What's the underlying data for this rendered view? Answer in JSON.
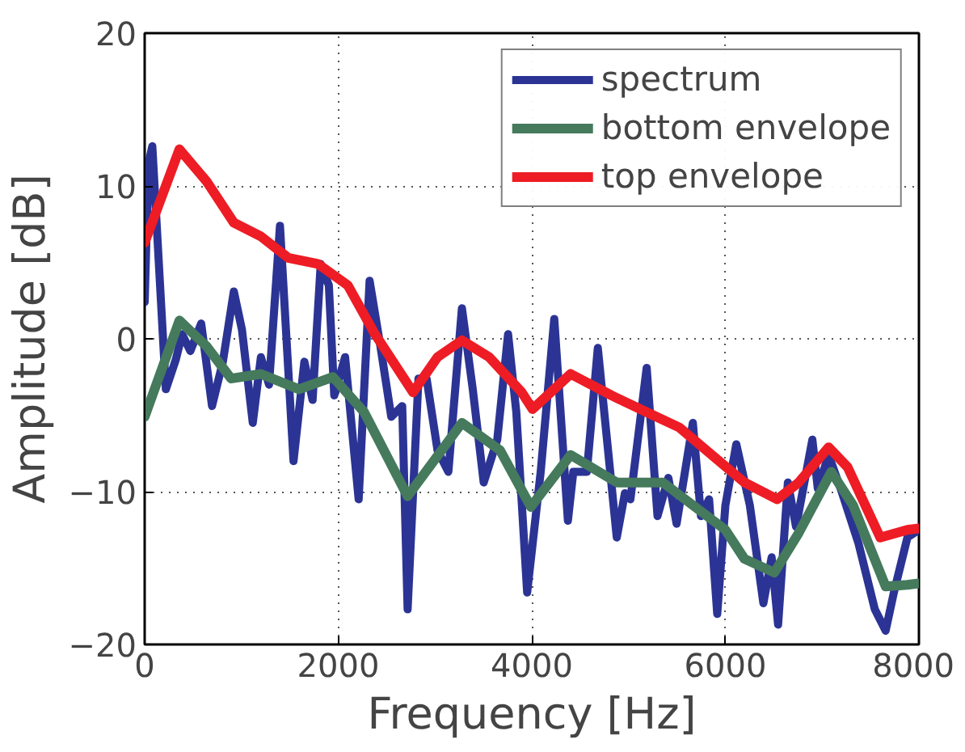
{
  "chart_data": {
    "type": "line",
    "xlabel": "Frequency [Hz]",
    "ylabel": "Amplitude [dB]",
    "xlim": [
      0,
      8000
    ],
    "ylim": [
      -20,
      20
    ],
    "xticks": [
      0,
      2000,
      4000,
      6000,
      8000
    ],
    "yticks": [
      -20,
      -10,
      0,
      10,
      20
    ],
    "grid": true,
    "legend": "top right",
    "line_style": "solid",
    "marker": "none",
    "series": [
      {
        "name": "spectrum",
        "color": "#2b3494",
        "x": [
          0,
          40,
          79,
          219,
          320,
          387,
          472,
          584,
          696,
          808,
          921,
          1005,
          1117,
          1201,
          1285,
          1398,
          1538,
          1650,
          1735,
          1819,
          1903,
          1959,
          2071,
          2211,
          2324,
          2436,
          2548,
          2661,
          2717,
          2829,
          2913,
          3026,
          3138,
          3278,
          3390,
          3503,
          3643,
          3755,
          3840,
          3952,
          4092,
          4232,
          4373,
          4429,
          4569,
          4682,
          4878,
          4962,
          5019,
          5187,
          5299,
          5411,
          5496,
          5664,
          5748,
          5832,
          5916,
          6000,
          6113,
          6253,
          6393,
          6478,
          6545,
          6646,
          6730,
          6899,
          6955,
          7067,
          7207,
          7376,
          7544,
          7656,
          7741,
          7881,
          8000
        ],
        "values": [
          2.4,
          11.5,
          12.6,
          -3.3,
          -1.4,
          0.3,
          -0.8,
          1.0,
          -4.4,
          -1.5,
          3.1,
          0.6,
          -5.5,
          -1.2,
          -3.0,
          7.4,
          -8.0,
          -1.5,
          -4.0,
          4.9,
          3.5,
          -3.7,
          -1.2,
          -10.5,
          3.8,
          -0.5,
          -5.1,
          -4.4,
          -17.7,
          -2.6,
          -2.6,
          -7.3,
          -8.7,
          2.0,
          -3.3,
          -9.4,
          -6.6,
          0.3,
          -4.8,
          -16.6,
          -8.7,
          1.3,
          -11.9,
          -8.7,
          -8.7,
          -0.6,
          -13.0,
          -10.1,
          -10.5,
          -1.9,
          -11.6,
          -9.1,
          -12.1,
          -5.5,
          -11.6,
          -10.5,
          -18.0,
          -10.9,
          -6.9,
          -10.9,
          -17.3,
          -14.3,
          -18.7,
          -9.4,
          -12.3,
          -6.6,
          -9.8,
          -7.6,
          -10.1,
          -13.4,
          -17.7,
          -19.1,
          -16.6,
          -13.0,
          -12.5
        ]
      },
      {
        "name": "bottom envelope",
        "color": "#457a5c",
        "x": [
          0,
          359,
          640,
          893,
          1201,
          1594,
          1945,
          2268,
          2717,
          3278,
          3672,
          3990,
          4401,
          4878,
          5355,
          6000,
          6197,
          6506,
          6758,
          7095,
          7320,
          7656,
          7881,
          8000
        ],
        "values": [
          -5.1,
          1.2,
          -0.5,
          -2.6,
          -2.3,
          -3.3,
          -2.5,
          -4.8,
          -10.3,
          -5.5,
          -7.3,
          -11.0,
          -7.6,
          -9.4,
          -9.4,
          -12.5,
          -14.4,
          -15.3,
          -12.7,
          -8.7,
          -10.9,
          -16.2,
          -16.1,
          -16.0
        ]
      },
      {
        "name": "top envelope",
        "color": "#ee1c25",
        "x": [
          0,
          359,
          640,
          921,
          1201,
          1482,
          1790,
          2099,
          2380,
          2773,
          3026,
          3278,
          3559,
          3896,
          4008,
          4401,
          4822,
          5187,
          5524,
          5860,
          6197,
          6534,
          6758,
          7067,
          7263,
          7600,
          7881,
          8000
        ],
        "values": [
          6.3,
          12.4,
          10.3,
          7.6,
          6.7,
          5.3,
          4.9,
          3.5,
          0.3,
          -3.5,
          -1.2,
          -0.1,
          -1.2,
          -3.5,
          -4.6,
          -2.3,
          -3.7,
          -4.8,
          -5.8,
          -7.6,
          -9.4,
          -10.5,
          -9.4,
          -7.1,
          -8.4,
          -13.0,
          -12.5,
          -12.4
        ]
      }
    ]
  }
}
